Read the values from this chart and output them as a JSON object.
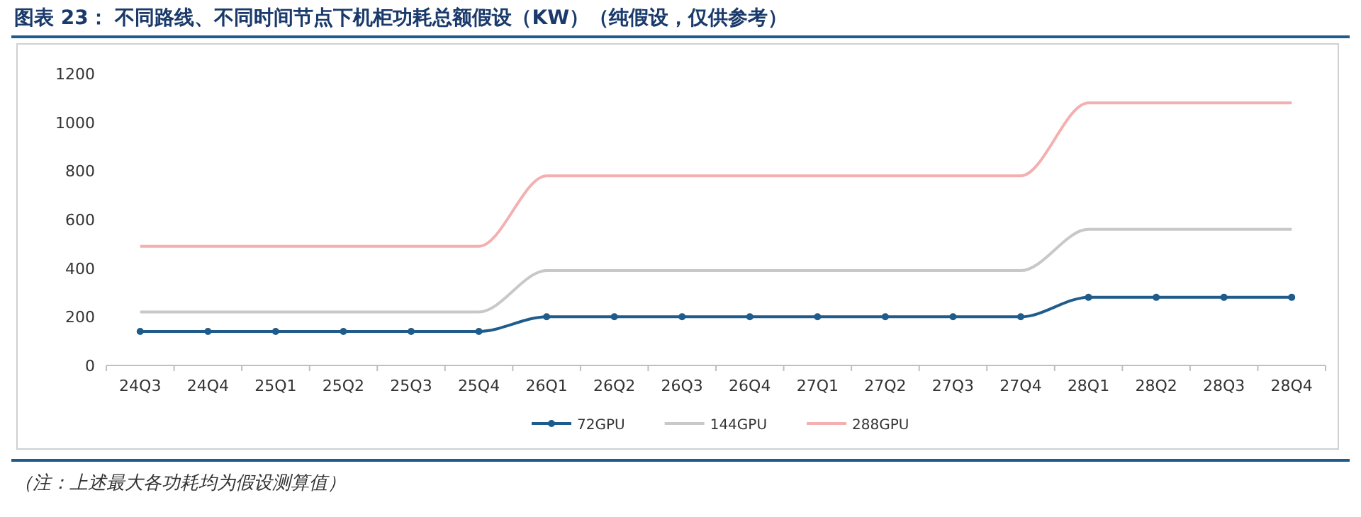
{
  "chart_data": {
    "type": "line",
    "title": "图表 23：  不同路线、不同时间节点下机柜功耗总额假设（KW）（纯假设，仅供参考）",
    "categories": [
      "24Q3",
      "24Q4",
      "25Q1",
      "25Q2",
      "25Q3",
      "25Q4",
      "26Q1",
      "26Q2",
      "26Q3",
      "26Q4",
      "27Q1",
      "27Q2",
      "27Q3",
      "27Q4",
      "28Q1",
      "28Q2",
      "28Q3",
      "28Q4"
    ],
    "series": [
      {
        "name": "72GPU",
        "color": "#1f5c8b",
        "marker": "circle",
        "values": [
          140,
          140,
          140,
          140,
          140,
          140,
          200,
          200,
          200,
          200,
          200,
          200,
          200,
          200,
          280,
          280,
          280,
          280
        ]
      },
      {
        "name": "144GPU",
        "color": "#c8c8c8",
        "values": [
          220,
          220,
          220,
          220,
          220,
          220,
          390,
          390,
          390,
          390,
          390,
          390,
          390,
          390,
          560,
          560,
          560,
          560
        ]
      },
      {
        "name": "288GPU",
        "color": "#f4b0b0",
        "values": [
          490,
          490,
          490,
          490,
          490,
          490,
          780,
          780,
          780,
          780,
          780,
          780,
          780,
          780,
          1080,
          1080,
          1080,
          1080
        ]
      }
    ],
    "ylim": [
      0,
      1200
    ],
    "yticks": [
      0,
      200,
      400,
      600,
      800,
      1000,
      1200
    ],
    "legend": "bottom",
    "annotations": [
      "（注：上述最大各功耗均为假设测算值）"
    ]
  }
}
